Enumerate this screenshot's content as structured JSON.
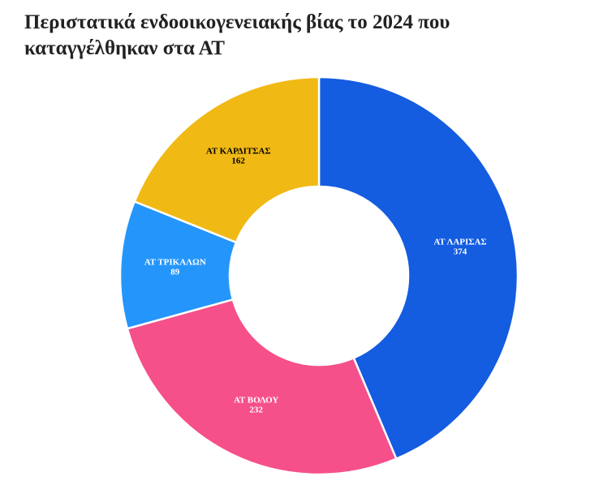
{
  "chart_data": {
    "type": "donut",
    "title": "Περιστατικά ενδοοικογενειακής βίας το 2024 που καταγγέλθηκαν στα ΑΤ",
    "categories": [
      "ΑΤ ΛΑΡΙΣΑΣ",
      "ΑΤ ΒΟΛΟΥ",
      "ΑΤ ΤΡΙΚΑΛΩΝ",
      "ΑΤ ΚΑΡΔΙΤΣΑΣ"
    ],
    "values": [
      374,
      232,
      89,
      162
    ],
    "colors": [
      "#145ce0",
      "#f5508a",
      "#2496fb",
      "#f0b914"
    ],
    "label_colors": [
      "#ffffff",
      "#ffffff",
      "#ffffff",
      "#000000"
    ]
  }
}
